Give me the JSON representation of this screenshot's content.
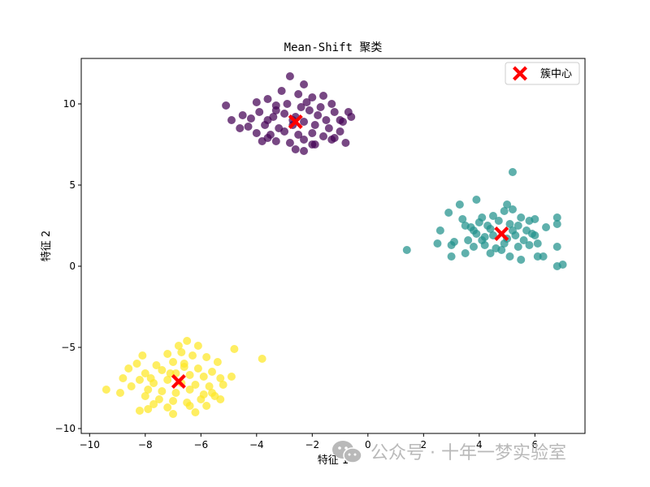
{
  "chart_data": {
    "type": "scatter",
    "title": "Mean-Shift 聚类",
    "xlabel": "特征 1",
    "ylabel": "特征 2",
    "xlim": [
      -10.3,
      7.8
    ],
    "ylim": [
      -10.3,
      12.8
    ],
    "xticks": [
      -10,
      -8,
      -6,
      -4,
      -2,
      0,
      2,
      4,
      6
    ],
    "yticks": [
      -10,
      -5,
      0,
      5,
      10
    ],
    "grid": false,
    "legend": {
      "position": "top-right",
      "entries": [
        "簇中心"
      ]
    },
    "colors": {
      "cluster_0": "#440154",
      "cluster_1": "#21918c",
      "cluster_2": "#fde725",
      "centers": "#ff0000"
    },
    "series": [
      {
        "values": [
          [
            -2.8,
            11.7
          ],
          [
            -2.3,
            11.2
          ],
          [
            -3.1,
            10.8
          ],
          [
            -2.0,
            10.4
          ],
          [
            -3.6,
            10.3
          ],
          [
            -2.5,
            10.6
          ],
          [
            -1.6,
            10.5
          ],
          [
            -4.0,
            10.1
          ],
          [
            -3.3,
            9.9
          ],
          [
            -2.9,
            10.0
          ],
          [
            -2.2,
            10.1
          ],
          [
            -1.3,
            10.0
          ],
          [
            -0.7,
            9.5
          ],
          [
            -0.6,
            9.2
          ],
          [
            -5.1,
            9.9
          ],
          [
            -4.5,
            9.3
          ],
          [
            -4.9,
            9.0
          ],
          [
            -4.2,
            9.1
          ],
          [
            -3.9,
            9.5
          ],
          [
            -3.4,
            9.2
          ],
          [
            -3.0,
            9.4
          ],
          [
            -2.6,
            9.2
          ],
          [
            -2.1,
            9.6
          ],
          [
            -1.8,
            9.3
          ],
          [
            -1.5,
            9.0
          ],
          [
            -1.2,
            9.5
          ],
          [
            -1.0,
            9.0
          ],
          [
            -4.3,
            8.6
          ],
          [
            -3.7,
            8.7
          ],
          [
            -3.2,
            8.5
          ],
          [
            -2.7,
            8.7
          ],
          [
            -2.3,
            8.9
          ],
          [
            -1.9,
            8.7
          ],
          [
            -1.4,
            8.5
          ],
          [
            -1.0,
            8.3
          ],
          [
            -0.9,
            8.9
          ],
          [
            -4.6,
            8.5
          ],
          [
            -4.0,
            8.2
          ],
          [
            -3.5,
            8.1
          ],
          [
            -3.0,
            8.3
          ],
          [
            -2.5,
            8.1
          ],
          [
            -2.0,
            8.2
          ],
          [
            -1.6,
            8.0
          ],
          [
            -1.2,
            7.9
          ],
          [
            -3.8,
            7.7
          ],
          [
            -3.3,
            7.7
          ],
          [
            -2.8,
            7.6
          ],
          [
            -2.3,
            7.8
          ],
          [
            -1.9,
            7.5
          ],
          [
            -1.3,
            7.8
          ],
          [
            -2.6,
            7.2
          ],
          [
            -2.3,
            7.1
          ],
          [
            -2.0,
            7.5
          ],
          [
            -3.6,
            7.9
          ],
          [
            -0.8,
            7.6
          ],
          [
            -2.4,
            9.8
          ],
          [
            -1.7,
            9.8
          ],
          [
            -3.3,
            9.6
          ],
          [
            -2.7,
            9.0
          ],
          [
            -3.6,
            9.0
          ]
        ]
      },
      {
        "values": [
          [
            5.2,
            5.8
          ],
          [
            3.9,
            4.1
          ],
          [
            3.3,
            3.8
          ],
          [
            5.0,
            3.8
          ],
          [
            5.2,
            3.5
          ],
          [
            2.9,
            3.3
          ],
          [
            3.4,
            2.9
          ],
          [
            4.1,
            3.0
          ],
          [
            4.5,
            3.1
          ],
          [
            4.9,
            3.4
          ],
          [
            5.5,
            3.0
          ],
          [
            6.0,
            2.9
          ],
          [
            6.8,
            3.0
          ],
          [
            2.6,
            2.2
          ],
          [
            3.7,
            2.4
          ],
          [
            4.0,
            2.7
          ],
          [
            4.3,
            2.5
          ],
          [
            4.7,
            2.8
          ],
          [
            5.1,
            2.6
          ],
          [
            5.4,
            2.5
          ],
          [
            5.8,
            2.8
          ],
          [
            6.4,
            2.4
          ],
          [
            6.8,
            2.6
          ],
          [
            2.5,
            1.4
          ],
          [
            3.1,
            1.5
          ],
          [
            3.6,
            1.6
          ],
          [
            3.9,
            2.0
          ],
          [
            4.2,
            1.8
          ],
          [
            4.5,
            1.9
          ],
          [
            5.0,
            1.7
          ],
          [
            5.3,
            1.9
          ],
          [
            5.6,
            1.6
          ],
          [
            5.9,
            2.0
          ],
          [
            6.1,
            1.4
          ],
          [
            3.0,
            1.3
          ],
          [
            3.8,
            1.2
          ],
          [
            4.2,
            1.3
          ],
          [
            4.6,
            1.1
          ],
          [
            4.9,
            1.4
          ],
          [
            5.4,
            1.2
          ],
          [
            5.8,
            1.3
          ],
          [
            6.3,
            0.6
          ],
          [
            6.8,
            1.2
          ],
          [
            1.4,
            1.0
          ],
          [
            3.0,
            0.6
          ],
          [
            3.5,
            0.8
          ],
          [
            4.4,
            0.8
          ],
          [
            4.8,
            1.0
          ],
          [
            5.1,
            0.6
          ],
          [
            5.5,
            0.4
          ],
          [
            6.1,
            0.6
          ],
          [
            6.8,
            0.0
          ],
          [
            7.0,
            0.1
          ],
          [
            3.8,
            2.2
          ],
          [
            4.4,
            2.3
          ],
          [
            5.7,
            2.2
          ],
          [
            4.1,
            1.6
          ],
          [
            5.2,
            2.2
          ],
          [
            6.0,
            1.9
          ],
          [
            3.5,
            2.5
          ]
        ]
      },
      {
        "values": [
          [
            -6.5,
            -4.6
          ],
          [
            -6.8,
            -4.9
          ],
          [
            -6.1,
            -4.9
          ],
          [
            -4.8,
            -5.1
          ],
          [
            -3.8,
            -5.7
          ],
          [
            -8.1,
            -5.5
          ],
          [
            -7.2,
            -5.4
          ],
          [
            -6.7,
            -5.3
          ],
          [
            -6.3,
            -5.5
          ],
          [
            -5.8,
            -5.6
          ],
          [
            -5.4,
            -5.9
          ],
          [
            -8.3,
            -6.0
          ],
          [
            -7.6,
            -6.1
          ],
          [
            -7.0,
            -5.9
          ],
          [
            -6.6,
            -6.2
          ],
          [
            -6.1,
            -6.3
          ],
          [
            -5.6,
            -6.5
          ],
          [
            -8.6,
            -6.3
          ],
          [
            -8.0,
            -6.6
          ],
          [
            -7.4,
            -6.4
          ],
          [
            -6.9,
            -6.6
          ],
          [
            -6.4,
            -6.7
          ],
          [
            -5.9,
            -6.8
          ],
          [
            -5.3,
            -6.9
          ],
          [
            -4.9,
            -6.8
          ],
          [
            -8.8,
            -6.9
          ],
          [
            -8.2,
            -7.0
          ],
          [
            -7.7,
            -7.2
          ],
          [
            -7.2,
            -7.0
          ],
          [
            -6.7,
            -7.2
          ],
          [
            -6.2,
            -7.3
          ],
          [
            -5.7,
            -7.4
          ],
          [
            -5.2,
            -7.3
          ],
          [
            -9.4,
            -7.6
          ],
          [
            -8.5,
            -7.4
          ],
          [
            -7.9,
            -7.6
          ],
          [
            -7.4,
            -7.7
          ],
          [
            -6.9,
            -7.8
          ],
          [
            -6.4,
            -7.6
          ],
          [
            -5.9,
            -7.9
          ],
          [
            -5.5,
            -8.0
          ],
          [
            -8.9,
            -7.8
          ],
          [
            -8.0,
            -8.0
          ],
          [
            -7.5,
            -8.2
          ],
          [
            -7.0,
            -8.3
          ],
          [
            -6.5,
            -8.4
          ],
          [
            -6.0,
            -8.2
          ],
          [
            -5.3,
            -8.2
          ],
          [
            -7.7,
            -8.5
          ],
          [
            -7.2,
            -8.7
          ],
          [
            -6.4,
            -8.6
          ],
          [
            -6.2,
            -9.0
          ],
          [
            -5.8,
            -8.6
          ],
          [
            -7.9,
            -8.8
          ],
          [
            -7.0,
            -9.1
          ],
          [
            -8.2,
            -8.9
          ],
          [
            -6.6,
            -6.0
          ],
          [
            -7.1,
            -6.6
          ],
          [
            -5.6,
            -7.8
          ],
          [
            -7.8,
            -6.9
          ]
        ]
      }
    ],
    "centers": [
      [
        -2.6,
        8.9
      ],
      [
        4.8,
        2.0
      ],
      [
        -6.8,
        -7.1
      ]
    ]
  },
  "watermark": {
    "text": "公众号 · 十年一梦实验室"
  }
}
